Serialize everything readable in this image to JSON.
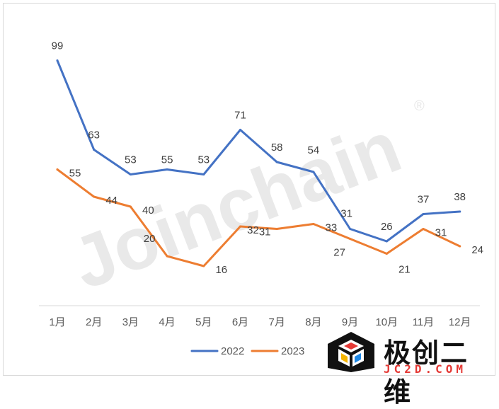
{
  "chart_data": {
    "type": "line",
    "categories": [
      "1月",
      "2月",
      "3月",
      "4月",
      "5月",
      "6月",
      "7月",
      "8月",
      "9月",
      "10月",
      "11月",
      "12月"
    ],
    "series": [
      {
        "name": "2022",
        "color": "#4472C4",
        "values": [
          99,
          63,
          53,
          55,
          53,
          71,
          58,
          54,
          31,
          26,
          37,
          38
        ]
      },
      {
        "name": "2023",
        "color": "#ED7D31",
        "values": [
          55,
          44,
          40,
          20,
          16,
          32,
          31,
          33,
          27,
          21,
          31,
          24
        ]
      }
    ],
    "title": "",
    "xlabel": "",
    "ylabel": "",
    "ylim": [
      0,
      110
    ],
    "grid": false,
    "legend": "bottom-center"
  },
  "watermark": {
    "text": "Joinchain",
    "mark": "®"
  },
  "logo": {
    "title": "极创二维",
    "domain": "JC2D.COM",
    "icon": "cube-logo-icon"
  }
}
